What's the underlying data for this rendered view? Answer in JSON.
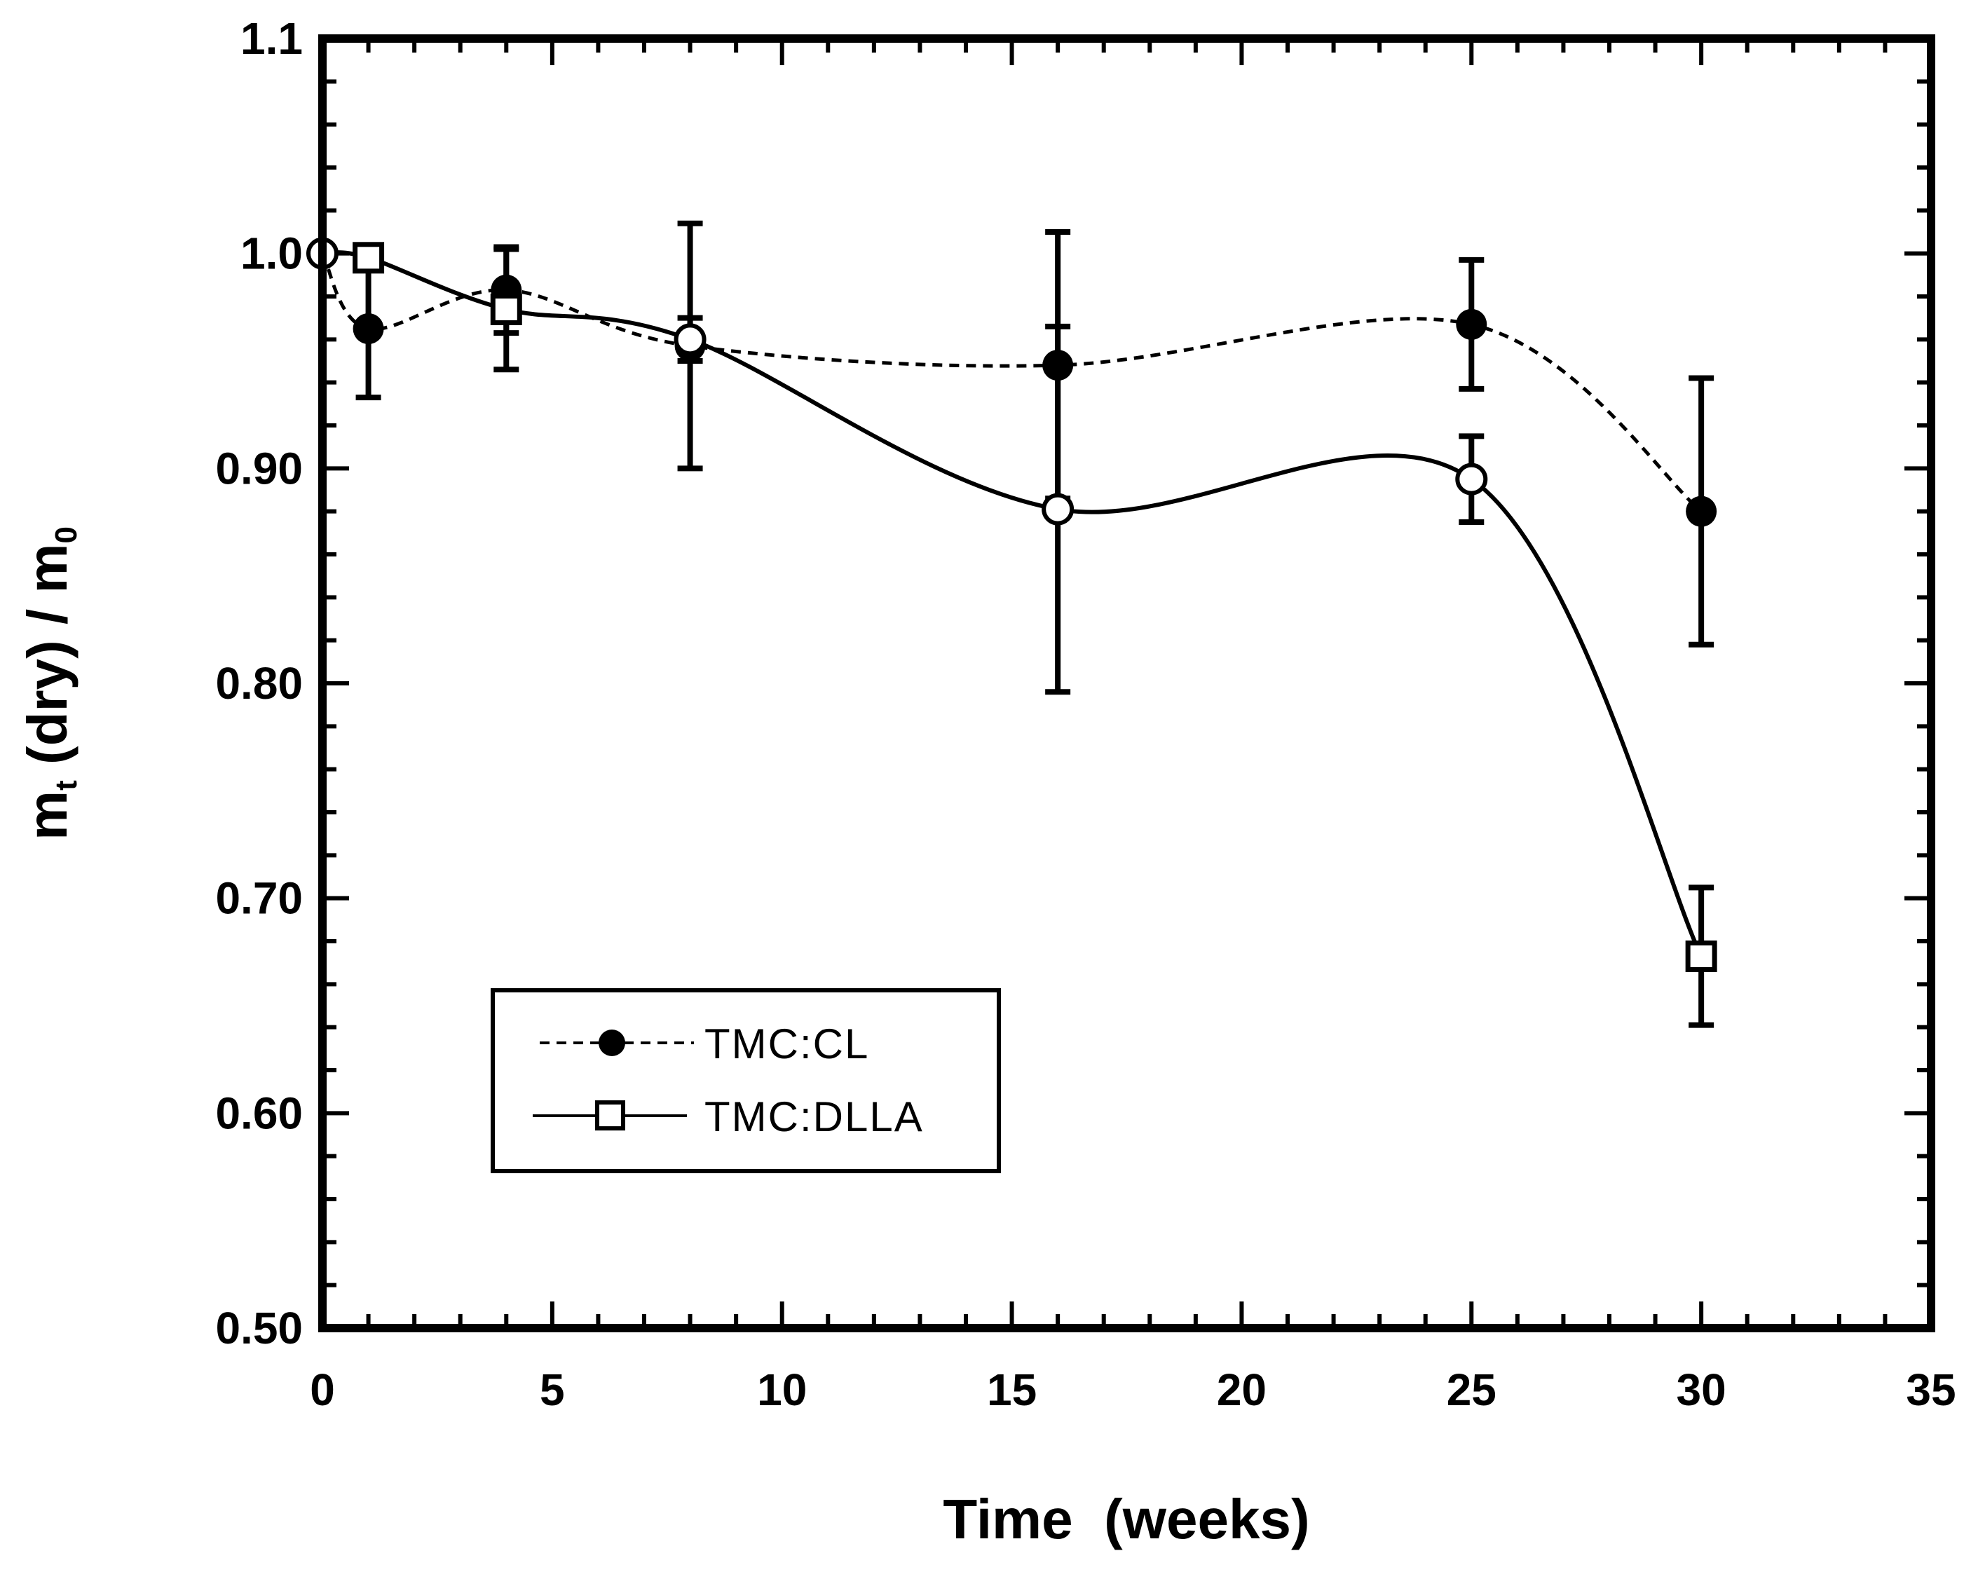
{
  "chart_data": {
    "type": "line",
    "title": "",
    "xlabel": "Time  (weeks)",
    "ylabel": {
      "main": "m",
      "sub1": "t",
      "middle": " (dry) / m",
      "sub2": "0"
    },
    "xlim": [
      0,
      35
    ],
    "ylim": [
      0.5,
      1.1
    ],
    "x_ticks": [
      0,
      5,
      10,
      15,
      20,
      25,
      30,
      35
    ],
    "x_tick_labels": [
      "0",
      "5",
      "10",
      "15",
      "20",
      "25",
      "30",
      "35"
    ],
    "y_ticks": [
      0.5,
      0.6,
      0.7,
      0.8,
      0.9,
      1.0,
      1.1
    ],
    "y_tick_labels": [
      "0.50",
      "0.60",
      "0.70",
      "0.80",
      "0.90",
      "1.0",
      "1.1"
    ],
    "grid": false,
    "legend_position": "lower-left",
    "series": [
      {
        "name": "TMC:CL",
        "label": "TMC:CL",
        "marker": "filled-circle",
        "line_style": "dashed",
        "color": "#000000",
        "x": [
          0,
          1,
          4,
          8,
          16,
          25,
          30
        ],
        "y": [
          1.0,
          0.965,
          0.983,
          0.957,
          0.948,
          0.967,
          0.88
        ],
        "err": [
          0,
          0.032,
          0.02,
          0.057,
          0.062,
          0.03,
          0.062
        ]
      },
      {
        "name": "TMC:DLLA",
        "label": "TMC:DLLA",
        "marker": "open-square",
        "line_style": "solid",
        "color": "#000000",
        "x": [
          0,
          1,
          4,
          8,
          16,
          25,
          30
        ],
        "y": [
          1.0,
          0.998,
          0.974,
          0.96,
          0.881,
          0.895,
          0.673
        ],
        "err": [
          0,
          0,
          0.028,
          0.01,
          0.085,
          0.02,
          0.032
        ]
      }
    ]
  }
}
